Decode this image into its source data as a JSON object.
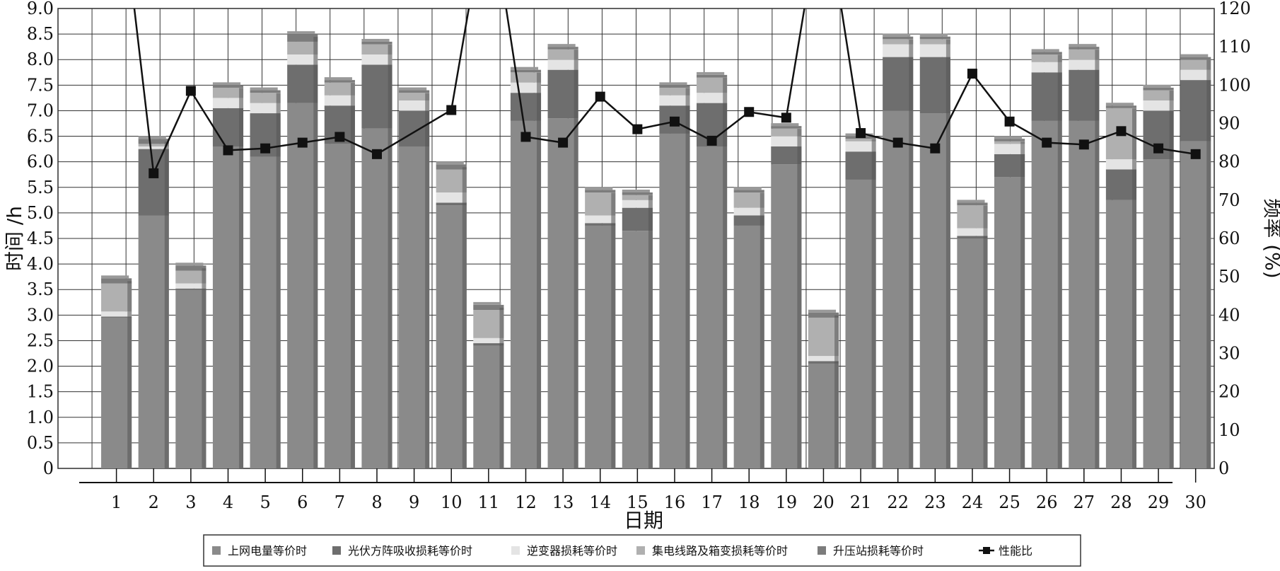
{
  "chart_data": {
    "type": "bar",
    "categories": [
      "1",
      "2",
      "3",
      "4",
      "5",
      "6",
      "7",
      "8",
      "9",
      "10",
      "11",
      "12",
      "13",
      "14",
      "15",
      "16",
      "17",
      "18",
      "19",
      "20",
      "21",
      "22",
      "23",
      "24",
      "25",
      "26",
      "27",
      "28",
      "29",
      "30"
    ],
    "xlabel": "日期",
    "ylabel": "时间 /h",
    "y2label": "频率 (%)",
    "ylim": [
      0,
      9.0
    ],
    "y2lim": [
      0,
      120
    ],
    "yticks": [
      "0",
      "0.5",
      "1.0",
      "1.5",
      "2.0",
      "2.5",
      "3.0",
      "3.5",
      "4.0",
      "4.5",
      "5.0",
      "5.5",
      "6.0",
      "6.5",
      "7.0",
      "7.5",
      "8.0",
      "8.5",
      "9.0"
    ],
    "y2ticks": [
      "0",
      "10",
      "20",
      "30",
      "40",
      "50",
      "60",
      "70",
      "80",
      "90",
      "100",
      "110",
      "120"
    ],
    "grid": true,
    "legend_position": "bottom",
    "series": [
      {
        "name": "上网电量等价时",
        "axis": "left",
        "color": "#8a8a8a",
        "values": [
          2.95,
          4.95,
          3.5,
          6.3,
          6.1,
          7.15,
          6.35,
          6.65,
          6.3,
          5.15,
          2.4,
          6.8,
          6.85,
          4.75,
          4.65,
          6.55,
          6.3,
          4.75,
          5.95,
          2.05,
          5.65,
          7.0,
          6.95,
          4.5,
          5.7,
          6.8,
          6.8,
          5.25,
          6.05,
          6.4
        ]
      },
      {
        "name": "光伏方阵吸收损耗等价时",
        "axis": "left",
        "color": "#6e6e6e",
        "values": [
          0.02,
          1.3,
          0.02,
          0.75,
          0.85,
          0.75,
          0.75,
          1.25,
          0.7,
          0.05,
          0.05,
          0.55,
          0.95,
          0.05,
          0.45,
          0.55,
          0.85,
          0.2,
          0.35,
          0.05,
          0.55,
          1.05,
          1.1,
          0.05,
          0.45,
          0.95,
          1.0,
          0.6,
          0.95,
          1.2
        ]
      },
      {
        "name": "逆变器损耗等价时",
        "axis": "left",
        "color": "#e4e4e4",
        "values": [
          0.1,
          0.05,
          0.1,
          0.2,
          0.2,
          0.2,
          0.2,
          0.2,
          0.2,
          0.2,
          0.1,
          0.2,
          0.2,
          0.15,
          0.15,
          0.2,
          0.2,
          0.15,
          0.2,
          0.1,
          0.2,
          0.25,
          0.25,
          0.15,
          0.2,
          0.2,
          0.2,
          0.2,
          0.2,
          0.2
        ]
      },
      {
        "name": "集电线路及箱变损耗等价时",
        "axis": "left",
        "color": "#b0b0b0",
        "values": [
          0.55,
          0.05,
          0.25,
          0.2,
          0.2,
          0.25,
          0.25,
          0.2,
          0.15,
          0.45,
          0.55,
          0.2,
          0.2,
          0.45,
          0.1,
          0.15,
          0.3,
          0.3,
          0.15,
          0.75,
          0.05,
          0.1,
          0.1,
          0.45,
          0.05,
          0.15,
          0.2,
          1.0,
          0.2,
          0.2
        ]
      },
      {
        "name": "升压站损耗等价时",
        "axis": "left",
        "color": "#7c7c7c",
        "values": [
          0.1,
          0.1,
          0.1,
          0.05,
          0.05,
          0.15,
          0.05,
          0.05,
          0.05,
          0.1,
          0.1,
          0.05,
          0.05,
          0.05,
          0.05,
          0.05,
          0.05,
          0.05,
          0.05,
          0.1,
          0.05,
          0.05,
          0.05,
          0.05,
          0.05,
          0.05,
          0.05,
          0.05,
          0.05,
          0.05
        ]
      },
      {
        "name": "性能比",
        "axis": "right",
        "type": "line",
        "color": "#111111",
        "values": [
          160,
          77,
          98.5,
          83,
          83.5,
          85,
          86.5,
          82,
          null,
          93.5,
          150,
          86.5,
          85,
          97,
          88.5,
          90.5,
          85.5,
          93,
          91.5,
          150,
          87.5,
          85,
          83.5,
          103,
          90.5,
          85,
          84.5,
          88,
          83.5,
          82
        ]
      }
    ]
  }
}
